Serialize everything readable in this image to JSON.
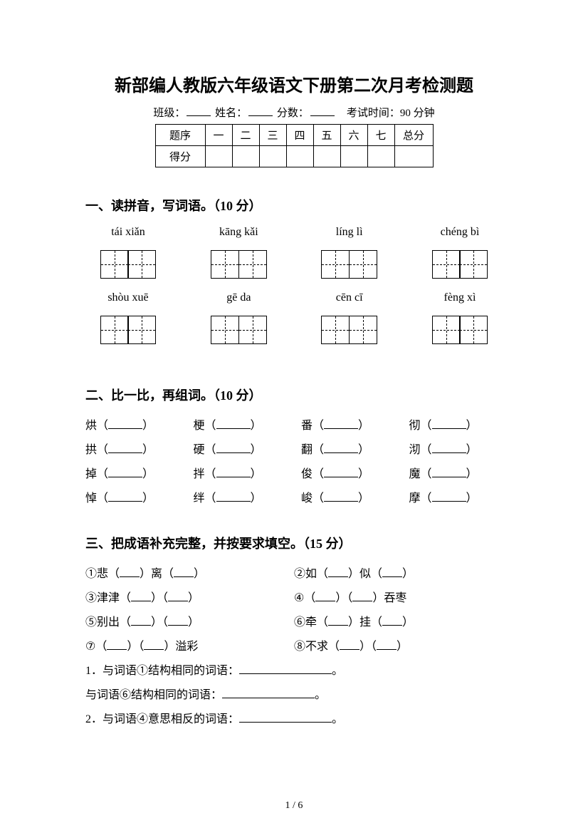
{
  "title": "新部编人教版六年级语文下册第二次月考检测题",
  "info": {
    "class_label": "班级：",
    "name_label": "姓名：",
    "score_label": "分数：",
    "exam_time_label": "考试时间：90 分钟"
  },
  "score_table": {
    "row1_label": "题序",
    "columns": [
      "一",
      "二",
      "三",
      "四",
      "五",
      "六",
      "七"
    ],
    "total_label": "总分",
    "row2_label": "得分"
  },
  "section1": {
    "title": "一、读拼音，写词语。（10 分）",
    "pinyin_row1": [
      "tái xiǎn",
      "kāng kǎi",
      "líng lì",
      "chéng bì"
    ],
    "pinyin_row2": [
      "shòu xuē",
      "gē da",
      "cēn cī",
      "fèng xì"
    ]
  },
  "section2": {
    "title": "二、比一比，再组词。（10 分）",
    "rows": [
      [
        "烘",
        "梗",
        "番",
        "彻"
      ],
      [
        "拱",
        "硬",
        "翻",
        "沏"
      ],
      [
        "掉",
        "拌",
        "俊",
        "魔"
      ],
      [
        "悼",
        "绊",
        "峻",
        "摩"
      ]
    ]
  },
  "section3": {
    "title": "三、把成语补充完整，并按要求填空。（15 分）",
    "items": [
      {
        "num": "①",
        "parts": [
          "悲（",
          "）离（",
          "）"
        ]
      },
      {
        "num": "②",
        "parts": [
          "如（",
          "）似（",
          "）"
        ]
      },
      {
        "num": "③",
        "parts": [
          "津津（",
          "）（",
          "）"
        ]
      },
      {
        "num": "④",
        "parts": [
          "（",
          "）（",
          "）吞枣"
        ]
      },
      {
        "num": "⑤",
        "parts": [
          "别出（",
          "）（",
          "）"
        ]
      },
      {
        "num": "⑥",
        "parts": [
          "牵（",
          "）挂（",
          "）"
        ]
      },
      {
        "num": "⑦",
        "parts": [
          "（",
          "）（",
          "）溢彩"
        ]
      },
      {
        "num": "⑧",
        "parts": [
          "不求（",
          "）（",
          "）"
        ]
      }
    ],
    "sub1": "1．与词语①结构相同的词语：",
    "sub2": "与词语⑥结构相同的词语：",
    "sub3": "2．与词语④意思相反的词语：",
    "period": "。"
  },
  "page_number": "1 / 6"
}
